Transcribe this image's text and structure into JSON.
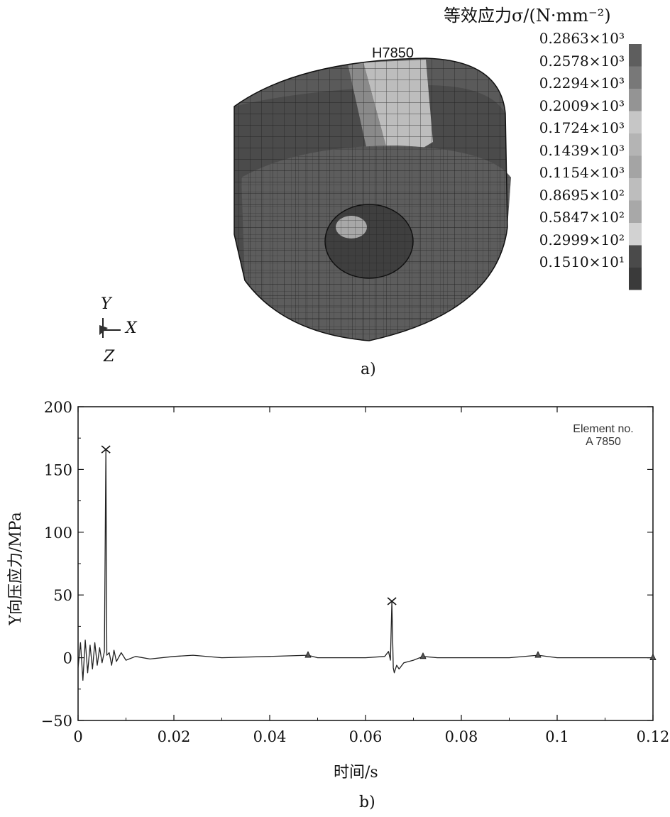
{
  "figure_a": {
    "element_label": "H7850",
    "legend_title": "等效应力σ/(N·mm⁻²)",
    "legend_levels": [
      {
        "label": "0.2863×10³",
        "color": "#5e5e5e"
      },
      {
        "label": "0.2578×10³",
        "color": "#787878"
      },
      {
        "label": "0.2294×10³",
        "color": "#949494"
      },
      {
        "label": "0.2009×10³",
        "color": "#c6c6c6"
      },
      {
        "label": "0.1724×10³",
        "color": "#b4b4b4"
      },
      {
        "label": "0.1439×10³",
        "color": "#a4a4a4"
      },
      {
        "label": "0.1154×10³",
        "color": "#bdbdbd"
      },
      {
        "label": "0.8695×10²",
        "color": "#a8a8a8"
      },
      {
        "label": "0.5847×10²",
        "color": "#d2d2d2"
      },
      {
        "label": "0.2999×10²",
        "color": "#4a4a4a"
      },
      {
        "label": "0.1510×10¹",
        "color": "#3a3a3a"
      }
    ],
    "triad": {
      "y": "Y",
      "x": "X",
      "z": "Z"
    },
    "caption": "a)"
  },
  "chart_data": {
    "type": "line",
    "xlabel": "时间/s",
    "ylabel": "Y向压应力/MPa",
    "xlim": [
      0,
      0.12
    ],
    "ylim": [
      -50,
      200
    ],
    "xticks": [
      "0",
      "0.02",
      "0.04",
      "0.06",
      "0.08",
      "0.1",
      "0.12"
    ],
    "yticks": [
      "−50",
      "0",
      "50",
      "100",
      "150",
      "200"
    ],
    "annotation": [
      "Element no.",
      "A 7850"
    ],
    "grid": false,
    "series": [
      {
        "x": [
          0,
          0.0005,
          0.001,
          0.0015,
          0.002,
          0.0025,
          0.003,
          0.0035,
          0.004,
          0.0045,
          0.005,
          0.0055,
          0.0058,
          0.006,
          0.0065,
          0.007,
          0.0075,
          0.008,
          0.009,
          0.01,
          0.012,
          0.015,
          0.02,
          0.024,
          0.03,
          0.04,
          0.048,
          0.05,
          0.06,
          0.064,
          0.0648,
          0.0652,
          0.0655,
          0.0658,
          0.066,
          0.0665,
          0.067,
          0.068,
          0.07,
          0.072,
          0.075,
          0.08,
          0.09,
          0.096,
          0.1,
          0.11,
          0.12
        ],
        "y": [
          -8,
          12,
          -18,
          14,
          -12,
          10,
          -9,
          12,
          -6,
          8,
          -4,
          5,
          166,
          2,
          4,
          -6,
          6,
          -3,
          4,
          -2,
          1,
          -1,
          1,
          2,
          0,
          1,
          2,
          0,
          0,
          1,
          5,
          -2,
          45,
          -8,
          -12,
          -6,
          -9,
          -4,
          -2,
          1,
          0,
          0,
          0,
          2,
          0,
          0,
          0
        ]
      }
    ],
    "markers": [
      {
        "x": 0.0058,
        "y": 166,
        "symbol": "x"
      },
      {
        "x": 0.0655,
        "y": 45,
        "symbol": "x"
      },
      {
        "x": 0.048,
        "y": 2,
        "symbol": "triangle"
      },
      {
        "x": 0.072,
        "y": 1,
        "symbol": "triangle"
      },
      {
        "x": 0.096,
        "y": 2,
        "symbol": "triangle"
      },
      {
        "x": 0.12,
        "y": 0,
        "symbol": "triangle"
      }
    ],
    "caption": "b)"
  }
}
